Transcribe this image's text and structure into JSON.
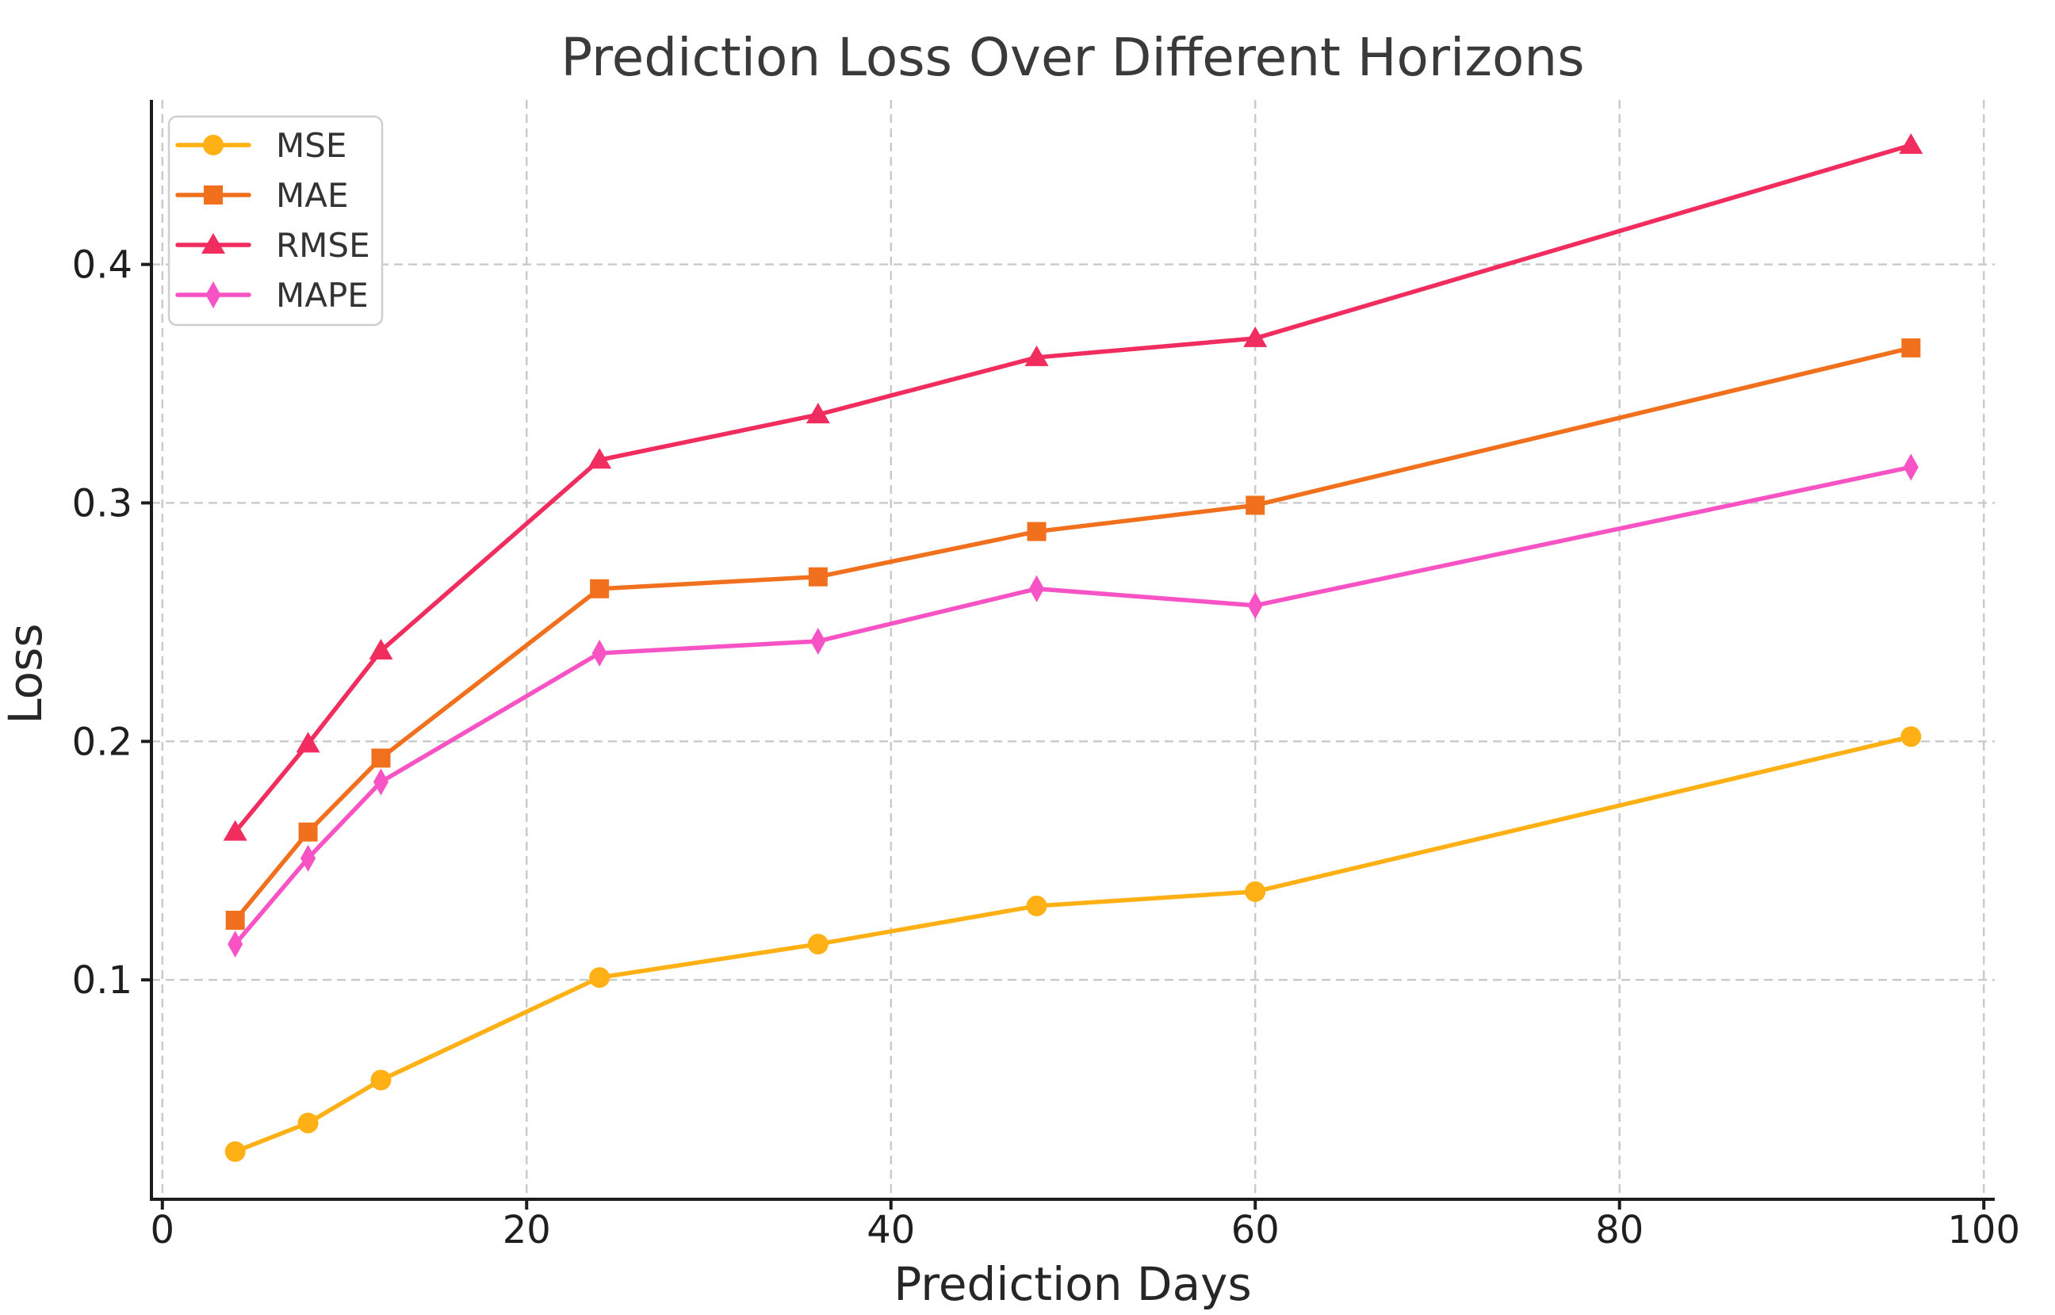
{
  "figure": {
    "background_color": "#ffffff"
  },
  "chart_data": {
    "type": "line",
    "title": "Prediction Loss Over Different Horizons",
    "xlabel": "Prediction Days",
    "ylabel": "Loss",
    "x": [
      4,
      8,
      12,
      24,
      36,
      48,
      60,
      96
    ],
    "series": [
      {
        "name": "MSE",
        "color": "#FFB014",
        "marker": "circle",
        "values": [
          0.028,
          0.04,
          0.058,
          0.101,
          0.115,
          0.131,
          0.137,
          0.202
        ]
      },
      {
        "name": "MAE",
        "color": "#F1701E",
        "marker": "square",
        "values": [
          0.125,
          0.162,
          0.193,
          0.264,
          0.269,
          0.288,
          0.299,
          0.365
        ]
      },
      {
        "name": "RMSE",
        "color": "#F02D5E",
        "marker": "triangle-up",
        "values": [
          0.162,
          0.199,
          0.238,
          0.318,
          0.337,
          0.361,
          0.369,
          0.45
        ]
      },
      {
        "name": "MAPE",
        "color": "#F753C5",
        "marker": "thin-diamond",
        "values": [
          0.115,
          0.151,
          0.183,
          0.237,
          0.242,
          0.264,
          0.257,
          0.315
        ]
      }
    ],
    "x_ticks": [
      0,
      20,
      40,
      60,
      80,
      100
    ],
    "y_ticks": [
      0.1,
      0.2,
      0.3,
      0.4
    ],
    "xlim": [
      -0.6,
      100.6
    ],
    "ylim": [
      0.008,
      0.469
    ],
    "grid": true,
    "grid_style": "dashed",
    "legend_position": "upper-left",
    "legend_entries": [
      "MSE",
      "MAE",
      "RMSE",
      "MAPE"
    ]
  },
  "style": {
    "grid_color": "#C9C9C9",
    "spine_color": "#1C1C1C",
    "tick_text_color": "#1F1F1F",
    "axis_label_color": "#262626",
    "title_color": "#3A3A3A",
    "legend_text_color": "#333333",
    "legend_border_color": "#CFCFCF",
    "legend_background": "#FFFFFF"
  }
}
